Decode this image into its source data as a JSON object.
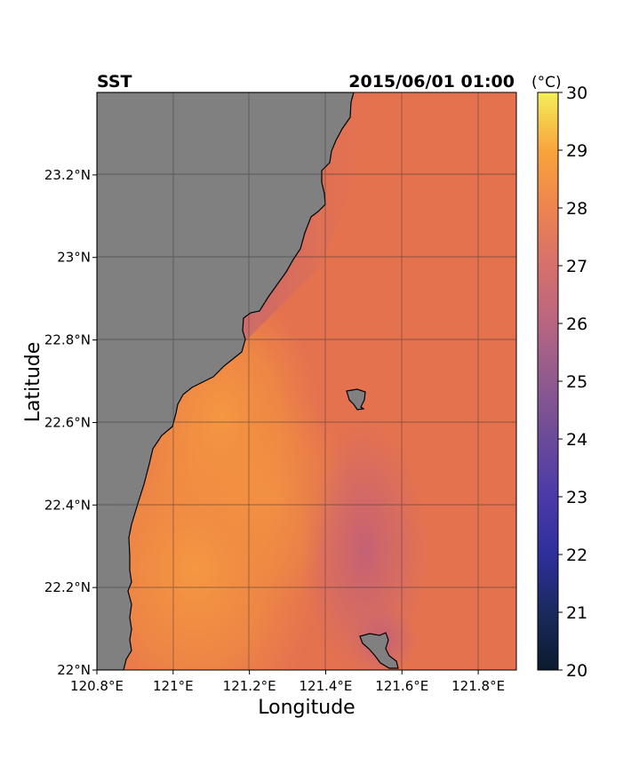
{
  "figure": {
    "title_left": "SST",
    "title_right": "2015/06/01 01:00",
    "unit_label": "(°C)",
    "xlabel": "Longitude",
    "ylabel": "Latitude"
  },
  "axes": {
    "lon_range": [
      120.8,
      121.9
    ],
    "lat_range": [
      22.0,
      23.4
    ],
    "x_ticks": [
      {
        "value": 120.8,
        "label": "120.8°E"
      },
      {
        "value": 121.0,
        "label": "121°E"
      },
      {
        "value": 121.2,
        "label": "121.2°E"
      },
      {
        "value": 121.4,
        "label": "121.4°E"
      },
      {
        "value": 121.6,
        "label": "121.6°E"
      },
      {
        "value": 121.8,
        "label": "121.8°E"
      }
    ],
    "y_ticks": [
      {
        "value": 22.0,
        "label": "22°N"
      },
      {
        "value": 22.2,
        "label": "22.2°N"
      },
      {
        "value": 22.4,
        "label": "22.4°N"
      },
      {
        "value": 22.6,
        "label": "22.6°N"
      },
      {
        "value": 22.8,
        "label": "22.8°N"
      },
      {
        "value": 23.0,
        "label": "23°N"
      },
      {
        "value": 23.2,
        "label": "23.2°N"
      }
    ],
    "grid": true
  },
  "colorbar": {
    "min": 20,
    "max": 30,
    "ticks": [
      "20",
      "21",
      "22",
      "23",
      "24",
      "25",
      "26",
      "27",
      "28",
      "29",
      "30"
    ],
    "colors": [
      "#0a1b2e",
      "#1a2a5e",
      "#2e2f9c",
      "#4a3aa8",
      "#6b4a9a",
      "#8f5a8e",
      "#b86582",
      "#d6706c",
      "#ee8450",
      "#f8a43c",
      "#f4f05a"
    ]
  },
  "colors": {
    "land": "#808080",
    "ocean_base": "#e4724f",
    "warm_water": "#f59444",
    "cool_water": "#c86470"
  }
}
